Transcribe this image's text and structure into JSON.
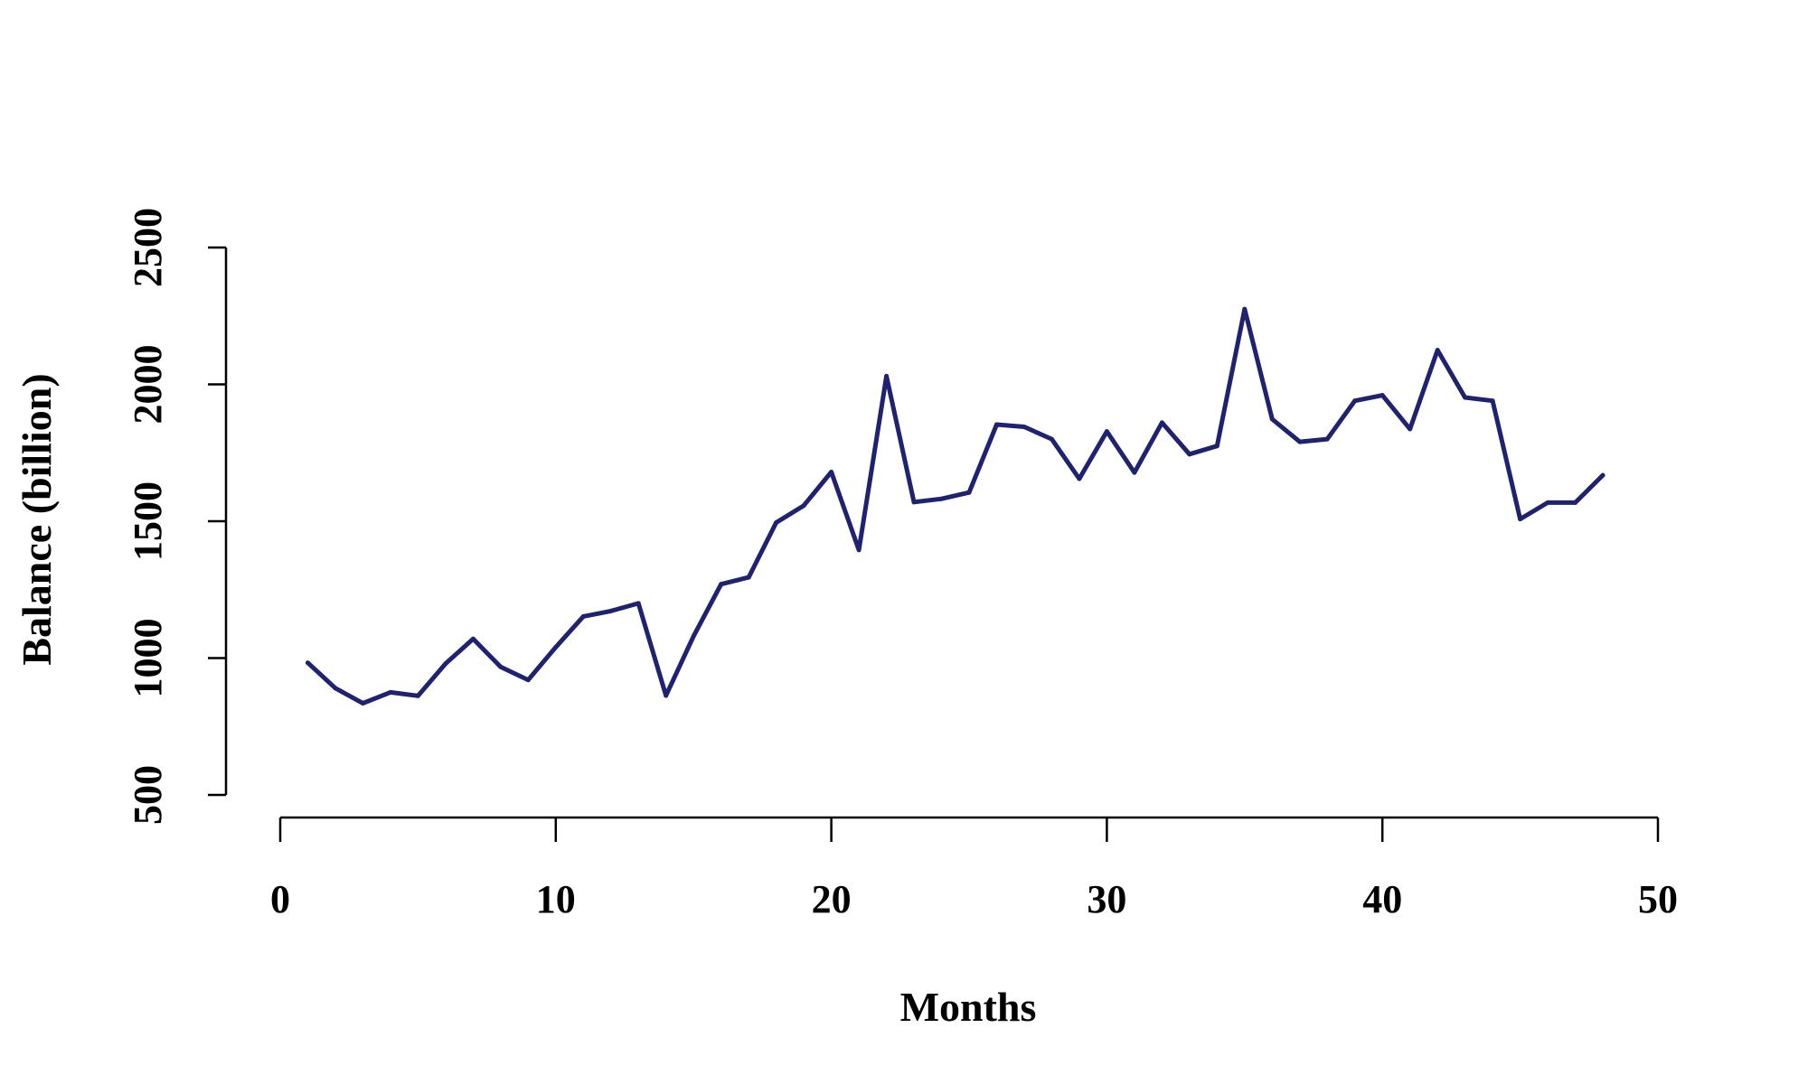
{
  "chart_data": {
    "type": "line",
    "title": "",
    "xlabel": "Months",
    "ylabel": "Balance (billion)",
    "xlim": [
      0,
      50
    ],
    "ylim": [
      500,
      2500
    ],
    "x_ticks": [
      0,
      10,
      20,
      30,
      40,
      50
    ],
    "y_ticks": [
      500,
      1000,
      1500,
      2000,
      2500
    ],
    "grid": false,
    "line_color": "#1f2270",
    "series": [
      {
        "x": [
          1,
          2,
          3,
          4,
          5,
          6,
          7,
          8,
          9,
          10,
          11,
          12,
          13,
          14,
          15,
          16,
          17,
          18,
          19,
          20,
          21,
          22,
          23,
          24,
          25,
          26,
          27,
          28,
          29,
          30,
          31,
          32,
          33,
          34,
          35,
          36,
          37,
          38,
          39,
          40,
          41,
          42,
          43,
          44,
          45,
          46,
          47,
          48
        ],
        "y": [
          983,
          890,
          835,
          875,
          862,
          980,
          1070,
          968,
          920,
          1040,
          1152,
          1172,
          1200,
          863,
          1080,
          1270,
          1295,
          1495,
          1557,
          1680,
          1395,
          2030,
          1570,
          1582,
          1605,
          1853,
          1845,
          1800,
          1655,
          1828,
          1678,
          1860,
          1745,
          1775,
          2275,
          1873,
          1790,
          1800,
          1940,
          1960,
          1837,
          2125,
          1952,
          1940,
          1508,
          1568,
          1568,
          1668
        ]
      }
    ]
  }
}
